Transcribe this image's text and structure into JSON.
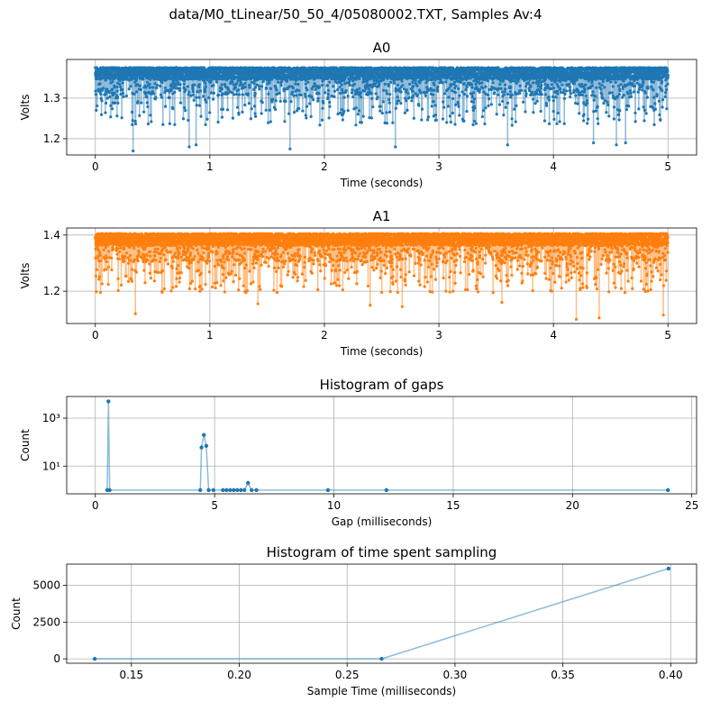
{
  "figure_title": "data/M0_tLinear/50_50_4/05080002.TXT, Samples Av:4",
  "colors": {
    "blue": "#1f77b4",
    "orange": "#ff7f0e",
    "grid": "#b0b0b0"
  },
  "chart_data": [
    {
      "type": "line",
      "title": "A0",
      "xlabel": "Time (seconds)",
      "ylabel": "Volts",
      "xlim": [
        -0.25,
        5.25
      ],
      "ylim": [
        1.16,
        1.395
      ],
      "xticks": [
        0,
        1,
        2,
        3,
        4,
        5
      ],
      "xtick_labels": [
        "0",
        "1",
        "2",
        "3",
        "4",
        "5"
      ],
      "yticks": [
        1.2,
        1.3
      ],
      "ytick_labels": [
        "1.2",
        "1.3"
      ],
      "grid": true,
      "marker": "dot",
      "series": [
        {
          "color": "#1f77b4",
          "x_range": [
            0,
            5
          ],
          "sample_count": 6200,
          "upper_envelope": 1.38,
          "typical_band": [
            1.31,
            1.375
          ],
          "min_value": 1.17,
          "notable_dips": [
            {
              "x": 0.33,
              "y": 1.17
            },
            {
              "x": 0.82,
              "y": 1.18
            },
            {
              "x": 0.88,
              "y": 1.185
            },
            {
              "x": 1.7,
              "y": 1.175
            },
            {
              "x": 2.62,
              "y": 1.18
            },
            {
              "x": 3.6,
              "y": 1.185
            },
            {
              "x": 4.35,
              "y": 1.19
            },
            {
              "x": 4.55,
              "y": 1.185
            },
            {
              "x": 4.63,
              "y": 1.19
            }
          ]
        }
      ]
    },
    {
      "type": "line",
      "title": "A1",
      "xlabel": "Time (seconds)",
      "ylabel": "Volts",
      "xlim": [
        -0.25,
        5.25
      ],
      "ylim": [
        1.085,
        1.425
      ],
      "xticks": [
        0,
        1,
        2,
        3,
        4,
        5
      ],
      "xtick_labels": [
        "0",
        "1",
        "2",
        "3",
        "4",
        "5"
      ],
      "yticks": [
        1.2,
        1.4
      ],
      "ytick_labels": [
        "1.2",
        "1.4"
      ],
      "grid": true,
      "marker": "dot",
      "series": [
        {
          "color": "#ff7f0e",
          "x_range": [
            0,
            5
          ],
          "sample_count": 6200,
          "upper_envelope": 1.41,
          "typical_band": [
            1.31,
            1.405
          ],
          "min_value": 1.1,
          "notable_dips": [
            {
              "x": 0.35,
              "y": 1.12
            },
            {
              "x": 1.42,
              "y": 1.155
            },
            {
              "x": 2.4,
              "y": 1.15
            },
            {
              "x": 2.68,
              "y": 1.145
            },
            {
              "x": 3.55,
              "y": 1.16
            },
            {
              "x": 4.2,
              "y": 1.1
            },
            {
              "x": 4.4,
              "y": 1.105
            },
            {
              "x": 4.96,
              "y": 1.115
            }
          ]
        }
      ]
    },
    {
      "type": "line",
      "title": "Histogram of gaps",
      "xlabel": "Gap (milliseconds)",
      "ylabel": "Count",
      "yscale": "log",
      "xlim": [
        -1.2,
        25.2
      ],
      "ylim": [
        0.7,
        8000
      ],
      "xticks": [
        0,
        5,
        10,
        15,
        20,
        25
      ],
      "xtick_labels": [
        "0",
        "5",
        "10",
        "15",
        "20",
        "25"
      ],
      "yticks": [
        10,
        1000
      ],
      "ytick_labels": [
        "10¹",
        "10³"
      ],
      "grid": true,
      "series": [
        {
          "color": "#1f77b4",
          "points": [
            {
              "x": 0.5,
              "y": 1
            },
            {
              "x": 0.55,
              "y": 5000
            },
            {
              "x": 0.6,
              "y": 1
            },
            {
              "x": 4.4,
              "y": 1
            },
            {
              "x": 4.45,
              "y": 60
            },
            {
              "x": 4.55,
              "y": 200
            },
            {
              "x": 4.65,
              "y": 70
            },
            {
              "x": 4.75,
              "y": 1
            },
            {
              "x": 4.95,
              "y": 1
            },
            {
              "x": 5.35,
              "y": 1
            },
            {
              "x": 5.5,
              "y": 1
            },
            {
              "x": 5.65,
              "y": 1
            },
            {
              "x": 5.8,
              "y": 1
            },
            {
              "x": 5.95,
              "y": 1
            },
            {
              "x": 6.1,
              "y": 1
            },
            {
              "x": 6.25,
              "y": 1
            },
            {
              "x": 6.4,
              "y": 2
            },
            {
              "x": 6.55,
              "y": 1
            },
            {
              "x": 6.75,
              "y": 1
            },
            {
              "x": 9.75,
              "y": 1
            },
            {
              "x": 12.2,
              "y": 1
            },
            {
              "x": 24.0,
              "y": 1
            }
          ]
        }
      ]
    },
    {
      "type": "line",
      "title": "Histogram of time spent sampling",
      "xlabel": "Sample Time (milliseconds)",
      "ylabel": "Count",
      "xlim": [
        0.12,
        0.412
      ],
      "ylim": [
        -300,
        6450
      ],
      "xticks": [
        0.15,
        0.2,
        0.25,
        0.3,
        0.35,
        0.4
      ],
      "xtick_labels": [
        "0.15",
        "0.20",
        "0.25",
        "0.30",
        "0.35",
        "0.40"
      ],
      "yticks": [
        0,
        2500,
        5000
      ],
      "ytick_labels": [
        "0",
        "2500",
        "5000"
      ],
      "grid": true,
      "series": [
        {
          "color": "#1f77b4",
          "points": [
            {
              "x": 0.133,
              "y": 0
            },
            {
              "x": 0.266,
              "y": 0
            },
            {
              "x": 0.399,
              "y": 6150
            }
          ]
        }
      ]
    }
  ]
}
